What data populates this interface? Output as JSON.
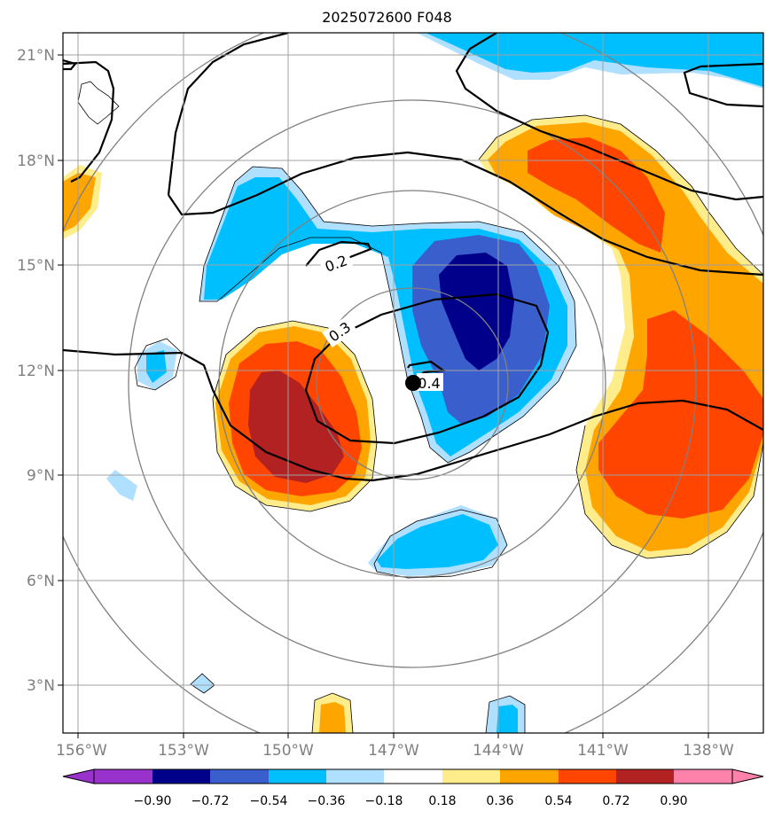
{
  "title": "2025072600 F048",
  "lon_ticks": [
    "156°W",
    "153°W",
    "150°W",
    "147°W",
    "144°W",
    "141°W",
    "138°W"
  ],
  "lat_ticks": [
    "21°N",
    "18°N",
    "15°N",
    "12°N",
    "9°N",
    "6°N",
    "3°N"
  ],
  "contour_labels": [
    "0.2",
    "0.3",
    "0.4"
  ],
  "storm_center": {
    "lon": -146.5,
    "lat": 11.6
  },
  "colorbar": {
    "ticks": [
      "−0.90",
      "−0.72",
      "−0.54",
      "−0.36",
      "−0.18",
      "0.18",
      "0.36",
      "0.54",
      "0.72",
      "0.90"
    ],
    "colors": [
      "#9932cc",
      "#00008b",
      "#3a5fcd",
      "#00bfff",
      "#b0e0ff",
      "#ffffff",
      "#ffec8b",
      "#ffa500",
      "#ff4500",
      "#b22222",
      "#ff82ab"
    ]
  },
  "colors": {
    "dark_blue": "#00008b",
    "mid_blue": "#3a5fcd",
    "sky_blue": "#00bfff",
    "light_blue": "#b0e0ff",
    "light_yellow": "#ffec8b",
    "orange": "#ffa500",
    "red_orange": "#ff4500",
    "dark_red": "#b22222"
  }
}
